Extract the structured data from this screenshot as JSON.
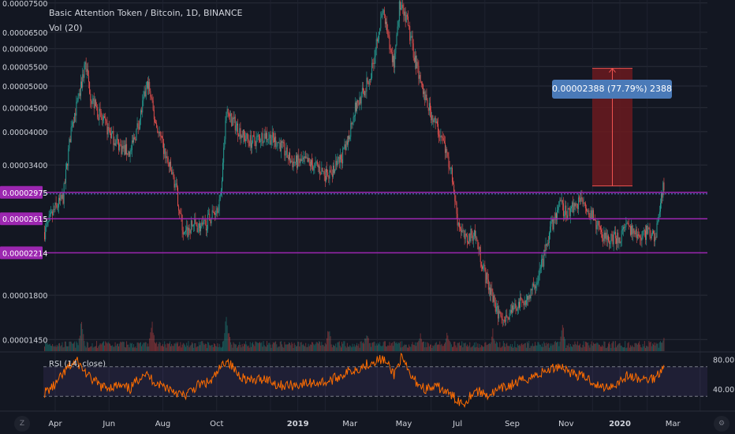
{
  "header": {
    "title": "Basic Attention Token / Bitcoin, 1D, BINANCE",
    "volume_label": "Vol (20)",
    "rsi_label": "RSI (14, close)"
  },
  "measure": {
    "label": "0.00002388 (77.79%) 2388",
    "from": 3.07e-05,
    "to": 5.45e-05
  },
  "colors": {
    "background": "#131722",
    "up": "#26a69a",
    "down": "#ef5350",
    "level_line": "#9c27b0",
    "rsi_line": "#ff6d00",
    "measure_fill": "#6b1a1f",
    "measure_label_bg": "#4a7ab8"
  },
  "price_axis": {
    "ticks": [
      "0.00007500",
      "0.00006500",
      "0.00006000",
      "0.00005500",
      "0.00005000",
      "0.00004500",
      "0.00004000",
      "0.00003400",
      "0.00001800",
      "0.00001450"
    ],
    "tick_values": [
      7.5e-05,
      6.5e-05,
      6e-05,
      5.5e-05,
      5e-05,
      4.5e-05,
      4e-05,
      3.4e-05,
      1.8e-05,
      1.45e-05
    ],
    "range": [
      1.37e-05,
      7.61e-05
    ],
    "scale": "log"
  },
  "levels": [
    {
      "label": "0.00002975",
      "value": 2.975e-05
    },
    {
      "label": "0.00002615",
      "value": 2.615e-05
    },
    {
      "label": "0.00002214",
      "value": 2.214e-05
    }
  ],
  "rsi_axis": {
    "ticks": [
      "80.00",
      "40.00"
    ],
    "tick_values": [
      80,
      40
    ],
    "range": [
      10,
      90
    ],
    "bands": [
      70,
      30
    ]
  },
  "time_axis": {
    "labels": [
      "Apr",
      "Jun",
      "Aug",
      "Oct",
      "2019",
      "Mar",
      "May",
      "Jul",
      "Sep",
      "Nov",
      "2020",
      "Mar"
    ],
    "bold": [
      false,
      false,
      false,
      false,
      true,
      false,
      false,
      false,
      false,
      false,
      true,
      false
    ]
  },
  "chart_data": {
    "type": "candlestick",
    "title": "Basic Attention Token / Bitcoin, 1D, BINANCE",
    "interval": "1D",
    "start": "2018-03-20",
    "end": "2020-02-20",
    "close_path": [
      [
        "2018-03-20",
        2.45e-05
      ],
      [
        "2018-04-01",
        2.75e-05
      ],
      [
        "2018-04-10",
        2.9e-05
      ],
      [
        "2018-04-20",
        4.2e-05
      ],
      [
        "2018-04-28",
        4.7e-05
      ],
      [
        "2018-05-05",
        5.6e-05
      ],
      [
        "2018-05-12",
        4.7e-05
      ],
      [
        "2018-05-25",
        4.2e-05
      ],
      [
        "2018-06-05",
        3.9e-05
      ],
      [
        "2018-06-15",
        3.7e-05
      ],
      [
        "2018-06-25",
        3.6e-05
      ],
      [
        "2018-07-05",
        4.2e-05
      ],
      [
        "2018-07-15",
        5.1e-05
      ],
      [
        "2018-07-22",
        4.3e-05
      ],
      [
        "2018-08-01",
        3.7e-05
      ],
      [
        "2018-08-15",
        3.1e-05
      ],
      [
        "2018-08-25",
        2.4e-05
      ],
      [
        "2018-09-05",
        2.55e-05
      ],
      [
        "2018-09-15",
        2.5e-05
      ],
      [
        "2018-09-25",
        2.65e-05
      ],
      [
        "2018-10-05",
        2.85e-05
      ],
      [
        "2018-10-12",
        4.4e-05
      ],
      [
        "2018-10-20",
        4.2e-05
      ],
      [
        "2018-11-01",
        3.9e-05
      ],
      [
        "2018-11-10",
        3.8e-05
      ],
      [
        "2018-11-25",
        3.95e-05
      ],
      [
        "2018-12-10",
        3.8e-05
      ],
      [
        "2018-12-25",
        3.45e-05
      ],
      [
        "2019-01-10",
        3.45e-05
      ],
      [
        "2019-01-25",
        3.35e-05
      ],
      [
        "2019-02-05",
        3.2e-05
      ],
      [
        "2019-02-15",
        3.4e-05
      ],
      [
        "2019-02-25",
        3.7e-05
      ],
      [
        "2019-03-05",
        4.4e-05
      ],
      [
        "2019-03-15",
        4.8e-05
      ],
      [
        "2019-03-25",
        5.3e-05
      ],
      [
        "2019-04-01",
        6.4e-05
      ],
      [
        "2019-04-08",
        7.2e-05
      ],
      [
        "2019-04-15",
        6e-05
      ],
      [
        "2019-04-20",
        5.6e-05
      ],
      [
        "2019-04-26",
        7.4e-05
      ],
      [
        "2019-05-05",
        6.8e-05
      ],
      [
        "2019-05-15",
        5.6e-05
      ],
      [
        "2019-05-25",
        4.7e-05
      ],
      [
        "2019-06-05",
        4.2e-05
      ],
      [
        "2019-06-15",
        3.8e-05
      ],
      [
        "2019-06-25",
        3.2e-05
      ],
      [
        "2019-07-01",
        2.6e-05
      ],
      [
        "2019-07-10",
        2.35e-05
      ],
      [
        "2019-07-20",
        2.45e-05
      ],
      [
        "2019-08-01",
        2e-05
      ],
      [
        "2019-08-15",
        1.65e-05
      ],
      [
        "2019-08-25",
        1.62e-05
      ],
      [
        "2019-09-05",
        1.7e-05
      ],
      [
        "2019-09-15",
        1.75e-05
      ],
      [
        "2019-09-25",
        1.85e-05
      ],
      [
        "2019-10-05",
        2.1e-05
      ],
      [
        "2019-10-15",
        2.5e-05
      ],
      [
        "2019-10-25",
        2.8e-05
      ],
      [
        "2019-11-01",
        2.7e-05
      ],
      [
        "2019-11-10",
        2.8e-05
      ],
      [
        "2019-11-20",
        2.9e-05
      ],
      [
        "2019-11-28",
        2.7e-05
      ],
      [
        "2019-12-10",
        2.45e-05
      ],
      [
        "2019-12-20",
        2.35e-05
      ],
      [
        "2020-01-01",
        2.4e-05
      ],
      [
        "2020-01-10",
        2.5e-05
      ],
      [
        "2020-01-20",
        2.4e-05
      ],
      [
        "2020-02-01",
        2.45e-05
      ],
      [
        "2020-02-10",
        2.4e-05
      ],
      [
        "2020-02-20",
        3.1e-05
      ]
    ],
    "volume_spikes": [
      [
        "2018-05-01",
        0.9
      ],
      [
        "2018-07-20",
        0.9
      ],
      [
        "2018-10-12",
        1.0
      ],
      [
        "2018-10-15",
        0.5
      ],
      [
        "2019-02-05",
        0.7
      ],
      [
        "2019-03-20",
        0.6
      ],
      [
        "2019-05-20",
        0.6
      ],
      [
        "2019-06-20",
        0.6
      ],
      [
        "2019-08-10",
        0.6
      ],
      [
        "2019-10-28",
        0.8
      ],
      [
        "2020-02-20",
        0.55
      ]
    ],
    "rsi_path": [
      [
        "2018-03-20",
        35
      ],
      [
        "2018-04-01",
        45
      ],
      [
        "2018-04-15",
        68
      ],
      [
        "2018-04-25",
        78
      ],
      [
        "2018-05-10",
        55
      ],
      [
        "2018-05-25",
        42
      ],
      [
        "2018-06-10",
        44
      ],
      [
        "2018-06-25",
        40
      ],
      [
        "2018-07-10",
        62
      ],
      [
        "2018-07-25",
        48
      ],
      [
        "2018-08-10",
        40
      ],
      [
        "2018-08-25",
        30
      ],
      [
        "2018-09-10",
        45
      ],
      [
        "2018-09-25",
        50
      ],
      [
        "2018-10-12",
        80
      ],
      [
        "2018-10-25",
        60
      ],
      [
        "2018-11-10",
        50
      ],
      [
        "2018-11-25",
        55
      ],
      [
        "2018-12-10",
        45
      ],
      [
        "2018-12-25",
        45
      ],
      [
        "2019-01-15",
        48
      ],
      [
        "2019-02-05",
        50
      ],
      [
        "2019-02-25",
        62
      ],
      [
        "2019-03-15",
        70
      ],
      [
        "2019-03-28",
        78
      ],
      [
        "2019-04-08",
        80
      ],
      [
        "2019-04-20",
        60
      ],
      [
        "2019-04-28",
        82
      ],
      [
        "2019-05-10",
        55
      ],
      [
        "2019-05-25",
        40
      ],
      [
        "2019-06-10",
        42
      ],
      [
        "2019-06-25",
        30
      ],
      [
        "2019-07-08",
        20
      ],
      [
        "2019-07-20",
        38
      ],
      [
        "2019-08-05",
        32
      ],
      [
        "2019-08-20",
        40
      ],
      [
        "2019-09-05",
        48
      ],
      [
        "2019-09-20",
        55
      ],
      [
        "2019-10-05",
        62
      ],
      [
        "2019-10-25",
        72
      ],
      [
        "2019-11-10",
        60
      ],
      [
        "2019-11-25",
        55
      ],
      [
        "2019-12-10",
        42
      ],
      [
        "2019-12-25",
        45
      ],
      [
        "2020-01-10",
        58
      ],
      [
        "2020-01-25",
        52
      ],
      [
        "2020-02-10",
        55
      ],
      [
        "2020-02-20",
        72
      ]
    ]
  }
}
